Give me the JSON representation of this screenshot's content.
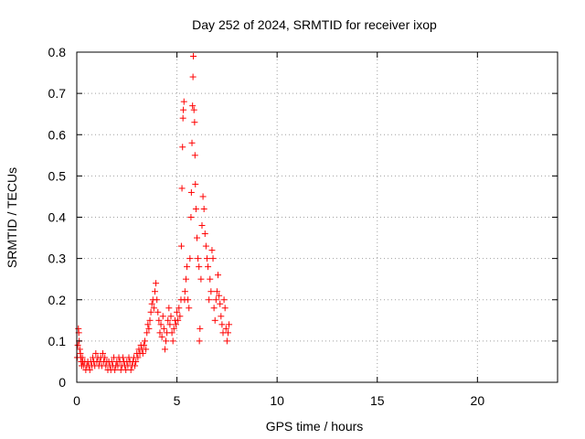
{
  "chart_data": {
    "type": "scatter",
    "title": "Day 252 of 2024, SRMTID for receiver ixop",
    "xlabel": "GPS time / hours",
    "ylabel": "SRMTID / TECUs",
    "xlim": [
      0,
      24
    ],
    "ylim": [
      0,
      0.8
    ],
    "xticks": [
      0,
      5,
      10,
      15,
      20
    ],
    "xtick_labels": [
      "0",
      "5",
      "10",
      "15",
      "20"
    ],
    "yticks": [
      0,
      0.1,
      0.2,
      0.3,
      0.4,
      0.5,
      0.6,
      0.7,
      0.8
    ],
    "ytick_labels": [
      "0",
      "0.1",
      "0.2",
      "0.3",
      "0.4",
      "0.5",
      "0.6",
      "0.7",
      "0.8"
    ],
    "grid": true,
    "marker": "+",
    "color": "#ff0000",
    "series": [
      {
        "name": "SRMTID",
        "points": [
          [
            0.02,
            0.06
          ],
          [
            0.05,
            0.09
          ],
          [
            0.08,
            0.13
          ],
          [
            0.1,
            0.12
          ],
          [
            0.12,
            0.1
          ],
          [
            0.15,
            0.08
          ],
          [
            0.18,
            0.07
          ],
          [
            0.2,
            0.06
          ],
          [
            0.22,
            0.05
          ],
          [
            0.25,
            0.04
          ],
          [
            0.28,
            0.06
          ],
          [
            0.3,
            0.05
          ],
          [
            0.35,
            0.04
          ],
          [
            0.4,
            0.05
          ],
          [
            0.45,
            0.03
          ],
          [
            0.5,
            0.04
          ],
          [
            0.55,
            0.05
          ],
          [
            0.6,
            0.04
          ],
          [
            0.65,
            0.03
          ],
          [
            0.7,
            0.05
          ],
          [
            0.75,
            0.04
          ],
          [
            0.8,
            0.06
          ],
          [
            0.85,
            0.05
          ],
          [
            0.9,
            0.04
          ],
          [
            0.95,
            0.07
          ],
          [
            1.0,
            0.05
          ],
          [
            1.05,
            0.06
          ],
          [
            1.1,
            0.04
          ],
          [
            1.15,
            0.05
          ],
          [
            1.2,
            0.06
          ],
          [
            1.25,
            0.04
          ],
          [
            1.3,
            0.07
          ],
          [
            1.35,
            0.05
          ],
          [
            1.4,
            0.06
          ],
          [
            1.45,
            0.04
          ],
          [
            1.5,
            0.05
          ],
          [
            1.55,
            0.03
          ],
          [
            1.6,
            0.05
          ],
          [
            1.65,
            0.04
          ],
          [
            1.7,
            0.03
          ],
          [
            1.75,
            0.05
          ],
          [
            1.8,
            0.04
          ],
          [
            1.85,
            0.06
          ],
          [
            1.9,
            0.03
          ],
          [
            1.95,
            0.04
          ],
          [
            2.0,
            0.05
          ],
          [
            2.05,
            0.04
          ],
          [
            2.1,
            0.06
          ],
          [
            2.15,
            0.05
          ],
          [
            2.2,
            0.03
          ],
          [
            2.25,
            0.04
          ],
          [
            2.3,
            0.06
          ],
          [
            2.35,
            0.05
          ],
          [
            2.4,
            0.04
          ],
          [
            2.45,
            0.03
          ],
          [
            2.5,
            0.05
          ],
          [
            2.55,
            0.04
          ],
          [
            2.6,
            0.06
          ],
          [
            2.65,
            0.05
          ],
          [
            2.7,
            0.03
          ],
          [
            2.75,
            0.04
          ],
          [
            2.8,
            0.05
          ],
          [
            2.85,
            0.06
          ],
          [
            2.9,
            0.04
          ],
          [
            2.95,
            0.05
          ],
          [
            3.0,
            0.07
          ],
          [
            3.05,
            0.06
          ],
          [
            3.1,
            0.08
          ],
          [
            3.15,
            0.07
          ],
          [
            3.2,
            0.09
          ],
          [
            3.25,
            0.08
          ],
          [
            3.3,
            0.07
          ],
          [
            3.35,
            0.09
          ],
          [
            3.4,
            0.1
          ],
          [
            3.45,
            0.08
          ],
          [
            3.5,
            0.12
          ],
          [
            3.55,
            0.14
          ],
          [
            3.6,
            0.13
          ],
          [
            3.65,
            0.15
          ],
          [
            3.7,
            0.17
          ],
          [
            3.75,
            0.19
          ],
          [
            3.8,
            0.2
          ],
          [
            3.85,
            0.18
          ],
          [
            3.9,
            0.22
          ],
          [
            3.95,
            0.24
          ],
          [
            4.0,
            0.2
          ],
          [
            4.05,
            0.17
          ],
          [
            4.1,
            0.15
          ],
          [
            4.15,
            0.12
          ],
          [
            4.2,
            0.14
          ],
          [
            4.25,
            0.11
          ],
          [
            4.3,
            0.16
          ],
          [
            4.35,
            0.13
          ],
          [
            4.4,
            0.08
          ],
          [
            4.45,
            0.1
          ],
          [
            4.5,
            0.12
          ],
          [
            4.55,
            0.15
          ],
          [
            4.6,
            0.18
          ],
          [
            4.65,
            0.14
          ],
          [
            4.7,
            0.16
          ],
          [
            4.75,
            0.12
          ],
          [
            4.8,
            0.1
          ],
          [
            4.85,
            0.13
          ],
          [
            4.9,
            0.15
          ],
          [
            4.95,
            0.14
          ],
          [
            5.0,
            0.17
          ],
          [
            5.05,
            0.15
          ],
          [
            5.1,
            0.18
          ],
          [
            5.15,
            0.16
          ],
          [
            5.2,
            0.2
          ],
          [
            5.22,
            0.33
          ],
          [
            5.25,
            0.47
          ],
          [
            5.28,
            0.57
          ],
          [
            5.3,
            0.64
          ],
          [
            5.32,
            0.66
          ],
          [
            5.35,
            0.68
          ],
          [
            5.38,
            0.2
          ],
          [
            5.4,
            0.22
          ],
          [
            5.45,
            0.25
          ],
          [
            5.5,
            0.28
          ],
          [
            5.55,
            0.2
          ],
          [
            5.6,
            0.18
          ],
          [
            5.65,
            0.3
          ],
          [
            5.7,
            0.4
          ],
          [
            5.72,
            0.46
          ],
          [
            5.75,
            0.58
          ],
          [
            5.78,
            0.67
          ],
          [
            5.8,
            0.74
          ],
          [
            5.82,
            0.79
          ],
          [
            5.85,
            0.66
          ],
          [
            5.88,
            0.63
          ],
          [
            5.9,
            0.55
          ],
          [
            5.92,
            0.48
          ],
          [
            5.95,
            0.42
          ],
          [
            6.0,
            0.35
          ],
          [
            6.05,
            0.3
          ],
          [
            6.1,
            0.28
          ],
          [
            6.12,
            0.1
          ],
          [
            6.15,
            0.13
          ],
          [
            6.2,
            0.25
          ],
          [
            6.25,
            0.38
          ],
          [
            6.3,
            0.45
          ],
          [
            6.35,
            0.42
          ],
          [
            6.4,
            0.36
          ],
          [
            6.45,
            0.33
          ],
          [
            6.5,
            0.3
          ],
          [
            6.55,
            0.28
          ],
          [
            6.6,
            0.2
          ],
          [
            6.65,
            0.25
          ],
          [
            6.7,
            0.22
          ],
          [
            6.75,
            0.32
          ],
          [
            6.8,
            0.3
          ],
          [
            6.85,
            0.18
          ],
          [
            6.9,
            0.15
          ],
          [
            6.95,
            0.2
          ],
          [
            7.0,
            0.22
          ],
          [
            7.05,
            0.26
          ],
          [
            7.1,
            0.21
          ],
          [
            7.15,
            0.19
          ],
          [
            7.2,
            0.16
          ],
          [
            7.25,
            0.14
          ],
          [
            7.3,
            0.12
          ],
          [
            7.35,
            0.2
          ],
          [
            7.4,
            0.18
          ],
          [
            7.45,
            0.13
          ],
          [
            7.5,
            0.1
          ],
          [
            7.55,
            0.12
          ],
          [
            7.6,
            0.14
          ]
        ]
      }
    ]
  }
}
